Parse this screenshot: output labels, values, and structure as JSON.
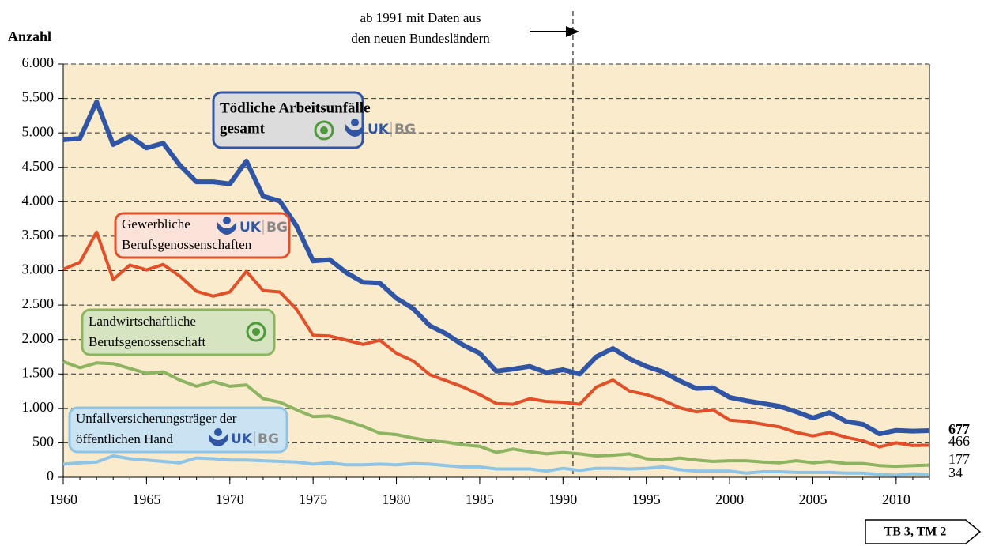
{
  "chart_data": {
    "type": "line",
    "y_label": "Anzahl",
    "annotation": {
      "text": [
        "ab 1991 mit Daten aus",
        "den neuen Bundesländern"
      ],
      "x": 1990.6
    },
    "logo": [
      "UK",
      "BG"
    ],
    "tag": "TB 3, TM 2",
    "x": [
      1960,
      1961,
      1962,
      1963,
      1964,
      1965,
      1966,
      1967,
      1968,
      1969,
      1970,
      1971,
      1972,
      1973,
      1974,
      1975,
      1976,
      1977,
      1978,
      1979,
      1980,
      1981,
      1982,
      1983,
      1984,
      1985,
      1986,
      1987,
      1988,
      1989,
      1990,
      1991,
      1992,
      1993,
      1994,
      1995,
      1996,
      1997,
      1998,
      1999,
      2000,
      2001,
      2002,
      2003,
      2004,
      2005,
      2006,
      2007,
      2008,
      2009,
      2010,
      2011,
      2012
    ],
    "xlim": [
      1960,
      2012
    ],
    "xticks": [
      1960,
      1965,
      1970,
      1975,
      1980,
      1985,
      1990,
      1995,
      2000,
      2005,
      2010
    ],
    "ylim": [
      0,
      6000
    ],
    "yticks": [
      0,
      500,
      {
        "value": 1000,
        "label": "1.000"
      },
      {
        "value": 1500,
        "label": "1.500"
      },
      {
        "value": 2000,
        "label": "2.000"
      },
      {
        "value": 2500,
        "label": "2.500"
      },
      {
        "value": 3000,
        "label": "3.000"
      },
      {
        "value": 3500,
        "label": "3.500"
      },
      {
        "value": 4000,
        "label": "4.000"
      },
      {
        "value": 4500,
        "label": "4.500"
      },
      {
        "value": 5000,
        "label": "5.000"
      },
      {
        "value": 5500,
        "label": "5.500"
      },
      {
        "value": 6000,
        "label": "6.000"
      }
    ],
    "grid": true,
    "series": [
      {
        "name": [
          "Tödliche Arbeitsunfälle",
          "gesamt"
        ],
        "color": "#2f55a4",
        "box_fill": "#dcdcdc",
        "values": [
          4900,
          4920,
          5450,
          4830,
          4950,
          4780,
          4850,
          4530,
          4290,
          4290,
          4260,
          4590,
          4080,
          4010,
          3650,
          3140,
          3160,
          2970,
          2830,
          2820,
          2600,
          2450,
          2200,
          2080,
          1920,
          1800,
          1540,
          1570,
          1610,
          1520,
          1560,
          1500,
          1750,
          1870,
          1720,
          1610,
          1530,
          1400,
          1290,
          1300,
          1160,
          1110,
          1070,
          1030,
          950,
          860,
          940,
          810,
          770,
          630,
          680,
          670,
          677
        ]
      },
      {
        "name": [
          "Gewerbliche",
          "Berufsgenossenschaften"
        ],
        "color": "#e2502a",
        "box_fill": "#fbe3d9",
        "values": [
          3020,
          3120,
          3560,
          2870,
          3080,
          3010,
          3090,
          2920,
          2700,
          2630,
          2690,
          2990,
          2710,
          2690,
          2440,
          2060,
          2050,
          1990,
          1930,
          1990,
          1800,
          1690,
          1490,
          1400,
          1310,
          1200,
          1070,
          1060,
          1140,
          1100,
          1090,
          1060,
          1310,
          1410,
          1250,
          1200,
          1120,
          1010,
          950,
          980,
          830,
          810,
          770,
          730,
          650,
          600,
          650,
          580,
          530,
          440,
          500,
          460,
          466
        ]
      },
      {
        "name": [
          "Landwirtschaftliche",
          "Berufsgenossenschaft"
        ],
        "color": "#8db460",
        "box_fill": "#d7e4c2",
        "values": [
          1680,
          1590,
          1660,
          1650,
          1580,
          1510,
          1530,
          1410,
          1320,
          1390,
          1320,
          1340,
          1140,
          1090,
          980,
          880,
          890,
          820,
          740,
          640,
          620,
          570,
          530,
          510,
          470,
          450,
          360,
          410,
          370,
          340,
          360,
          340,
          310,
          320,
          340,
          270,
          250,
          280,
          250,
          230,
          240,
          240,
          220,
          210,
          240,
          210,
          230,
          200,
          200,
          170,
          160,
          170,
          177
        ]
      },
      {
        "name": [
          "Unfallversicherungsträger der",
          "öffentlichen Hand"
        ],
        "color": "#8ec4e6",
        "box_fill": "#c9e3f3",
        "values": [
          190,
          210,
          220,
          310,
          270,
          250,
          230,
          210,
          280,
          270,
          250,
          250,
          240,
          230,
          220,
          190,
          210,
          180,
          180,
          190,
          180,
          200,
          190,
          170,
          150,
          150,
          120,
          120,
          120,
          90,
          130,
          100,
          130,
          130,
          120,
          130,
          150,
          110,
          90,
          90,
          90,
          60,
          80,
          80,
          70,
          70,
          70,
          60,
          60,
          40,
          30,
          50,
          34
        ]
      }
    ]
  }
}
